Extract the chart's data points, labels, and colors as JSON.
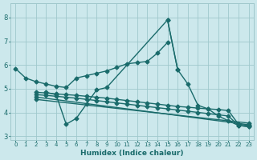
{
  "xlabel": "Humidex (Indice chaleur)",
  "xlim": [
    -0.5,
    23.5
  ],
  "ylim": [
    2.85,
    8.6
  ],
  "yticks": [
    3,
    4,
    5,
    6,
    7,
    8
  ],
  "xticks": [
    0,
    1,
    2,
    3,
    4,
    5,
    6,
    7,
    8,
    9,
    10,
    11,
    12,
    13,
    14,
    15,
    16,
    17,
    18,
    19,
    20,
    21,
    22,
    23
  ],
  "background_color": "#cce8ec",
  "grid_color": "#9fc8cc",
  "line_color": "#1a6b6b",
  "line_width": 1.0,
  "marker": "D",
  "marker_size": 2.5,
  "line1_x": [
    0,
    1,
    2,
    3,
    4,
    5,
    6,
    7,
    8,
    9,
    10,
    11,
    12,
    13,
    14,
    15
  ],
  "line1_y": [
    5.85,
    5.45,
    5.3,
    5.2,
    5.1,
    5.05,
    5.45,
    5.55,
    5.65,
    5.75,
    5.9,
    6.05,
    6.1,
    6.15,
    6.5,
    6.95
  ],
  "line2_x": [
    3,
    4,
    5,
    6,
    7,
    8,
    9,
    15,
    16
  ],
  "line2_y": [
    4.85,
    4.75,
    3.5,
    3.75,
    4.35,
    4.95,
    5.05,
    7.9,
    5.8
  ],
  "line3_x": [
    15,
    16,
    17,
    18,
    19,
    20,
    21,
    22,
    23
  ],
  "line3_y": [
    7.9,
    5.8,
    5.2,
    4.3,
    4.15,
    3.85,
    3.65,
    3.45,
    3.4
  ],
  "trend1_x": [
    2,
    3,
    4,
    5,
    6,
    7,
    8,
    9,
    10,
    11,
    12,
    13,
    14,
    15,
    16,
    17,
    18,
    19,
    20,
    21,
    22,
    23
  ],
  "trend1_y": [
    4.85,
    4.82,
    4.78,
    4.75,
    4.72,
    4.68,
    4.64,
    4.6,
    4.55,
    4.5,
    4.45,
    4.4,
    4.35,
    4.3,
    4.25,
    4.22,
    4.18,
    4.15,
    4.12,
    4.08,
    3.5,
    3.45
  ],
  "trend2_x": [
    2,
    3,
    4,
    5,
    6,
    7,
    8,
    9,
    10,
    11,
    12,
    13,
    14,
    15,
    16,
    17,
    18,
    19,
    20,
    21,
    22,
    23
  ],
  "trend2_y": [
    4.75,
    4.72,
    4.68,
    4.64,
    4.6,
    4.55,
    4.5,
    4.45,
    4.4,
    4.35,
    4.3,
    4.25,
    4.2,
    4.15,
    4.1,
    4.05,
    4.0,
    3.95,
    3.9,
    3.85,
    3.45,
    3.4
  ],
  "trend3_x": [
    2,
    23
  ],
  "trend3_y": [
    4.65,
    3.48
  ],
  "trend4_x": [
    2,
    23
  ],
  "trend4_y": [
    4.55,
    3.55
  ]
}
